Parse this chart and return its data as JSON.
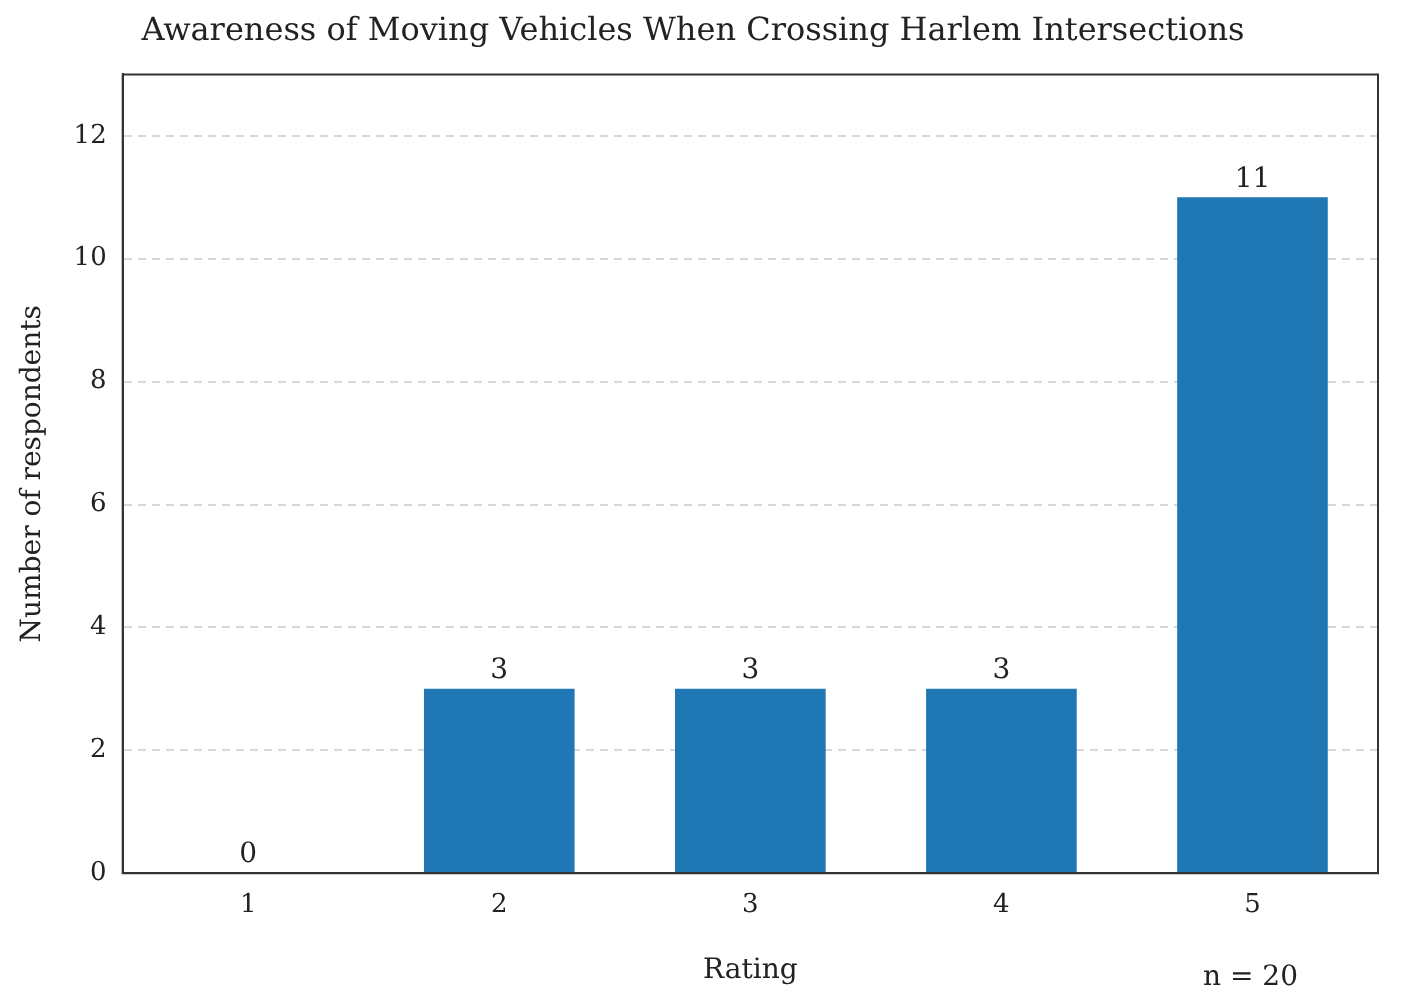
{
  "chart_data": {
    "type": "bar",
    "title": "Awareness of Moving Vehicles When Crossing Harlem Intersections",
    "xlabel": "Rating",
    "ylabel": "Number of respondents",
    "categories": [
      "1",
      "2",
      "3",
      "4",
      "5"
    ],
    "values": [
      0,
      3,
      3,
      3,
      11
    ],
    "color": "#1f77b4",
    "ylim": [
      0,
      13
    ],
    "yticks": [
      0,
      2,
      4,
      6,
      8,
      10,
      12
    ],
    "grid": "y",
    "data_labels": true,
    "legend": false,
    "annotations": [
      "n = 20"
    ]
  }
}
